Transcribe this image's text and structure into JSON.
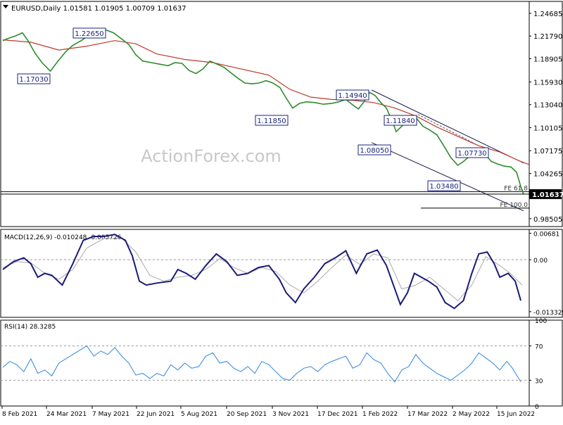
{
  "chart_data": [
    {
      "type": "candlestick",
      "panel": "price",
      "title": "EURUSD,Daily",
      "ohlc_readout": "1.01581 1.01905 1.00709 1.01637",
      "watermark": "ActionForex.com",
      "ylim": [
        0.975,
        1.262
      ],
      "y_ticks": [
        "1.24685",
        "1.21790",
        "1.18905",
        "1.15930",
        "1.13040",
        "1.10105",
        "1.07175",
        "1.04265",
        "1.01637",
        "0.98505"
      ],
      "x_ticks": [
        "8 Feb 2021",
        "24 Mar 2021",
        "7 May 2021",
        "22 Jun 2021",
        "5 Aug 2021",
        "20 Sep 2021",
        "3 Nov 2021",
        "17 Dec 2021",
        "1 Feb 2022",
        "17 Mar 2022",
        "2 May 2022",
        "15 Jun 2022"
      ],
      "current_price": "1.01637",
      "price_path": [
        [
          0,
          1.212
        ],
        [
          8,
          1.215
        ],
        [
          18,
          1.218
        ],
        [
          28,
          1.222
        ],
        [
          36,
          1.212
        ],
        [
          46,
          1.196
        ],
        [
          56,
          1.184
        ],
        [
          68,
          1.173
        ],
        [
          78,
          1.185
        ],
        [
          90,
          1.198
        ],
        [
          100,
          1.206
        ],
        [
          112,
          1.212
        ],
        [
          122,
          1.218
        ],
        [
          134,
          1.224
        ],
        [
          146,
          1.226
        ],
        [
          158,
          1.222
        ],
        [
          170,
          1.214
        ],
        [
          180,
          1.207
        ],
        [
          190,
          1.194
        ],
        [
          200,
          1.186
        ],
        [
          212,
          1.184
        ],
        [
          224,
          1.182
        ],
        [
          236,
          1.18
        ],
        [
          246,
          1.184
        ],
        [
          256,
          1.183
        ],
        [
          266,
          1.174
        ],
        [
          276,
          1.17
        ],
        [
          286,
          1.176
        ],
        [
          296,
          1.186
        ],
        [
          306,
          1.182
        ],
        [
          316,
          1.178
        ],
        [
          326,
          1.171
        ],
        [
          336,
          1.164
        ],
        [
          346,
          1.158
        ],
        [
          356,
          1.157
        ],
        [
          366,
          1.158
        ],
        [
          376,
          1.161
        ],
        [
          386,
          1.158
        ],
        [
          396,
          1.152
        ],
        [
          404,
          1.14
        ],
        [
          414,
          1.126
        ],
        [
          424,
          1.132
        ],
        [
          434,
          1.134
        ],
        [
          446,
          1.133
        ],
        [
          458,
          1.131
        ],
        [
          470,
          1.132
        ],
        [
          480,
          1.134
        ],
        [
          490,
          1.137
        ],
        [
          500,
          1.13
        ],
        [
          508,
          1.125
        ],
        [
          516,
          1.134
        ],
        [
          524,
          1.146
        ],
        [
          532,
          1.142
        ],
        [
          540,
          1.133
        ],
        [
          548,
          1.126
        ],
        [
          556,
          1.11
        ],
        [
          562,
          1.096
        ],
        [
          570,
          1.103
        ],
        [
          580,
          1.111
        ],
        [
          590,
          1.114
        ],
        [
          600,
          1.103
        ],
        [
          610,
          1.098
        ],
        [
          620,
          1.092
        ],
        [
          630,
          1.078
        ],
        [
          640,
          1.063
        ],
        [
          650,
          1.053
        ],
        [
          658,
          1.058
        ],
        [
          666,
          1.064
        ],
        [
          674,
          1.072
        ],
        [
          682,
          1.073
        ],
        [
          690,
          1.066
        ],
        [
          698,
          1.058
        ],
        [
          706,
          1.055
        ],
        [
          716,
          1.052
        ],
        [
          726,
          1.051
        ],
        [
          734,
          1.044
        ],
        [
          740,
          1.026
        ],
        [
          744,
          1.016
        ]
      ],
      "sma_path": [
        [
          0,
          1.213
        ],
        [
          40,
          1.21
        ],
        [
          80,
          1.2
        ],
        [
          120,
          1.205
        ],
        [
          160,
          1.212
        ],
        [
          190,
          1.208
        ],
        [
          220,
          1.195
        ],
        [
          260,
          1.188
        ],
        [
          300,
          1.184
        ],
        [
          340,
          1.176
        ],
        [
          380,
          1.168
        ],
        [
          410,
          1.15
        ],
        [
          440,
          1.14
        ],
        [
          470,
          1.137
        ],
        [
          500,
          1.136
        ],
        [
          530,
          1.133
        ],
        [
          560,
          1.126
        ],
        [
          590,
          1.116
        ],
        [
          620,
          1.102
        ],
        [
          650,
          1.09
        ],
        [
          680,
          1.078
        ],
        [
          710,
          1.07
        ],
        [
          740,
          1.058
        ],
        [
          752,
          1.054
        ]
      ],
      "annotations": [
        {
          "label": "1.22650",
          "value": 1.2265
        },
        {
          "label": "1.17030",
          "value": 1.1703
        },
        {
          "label": "1.14940",
          "value": 1.1494
        },
        {
          "label": "1.11850",
          "value": 1.1185
        },
        {
          "label": "1.11840",
          "value": 1.1184
        },
        {
          "label": "1.08050",
          "value": 1.0805
        },
        {
          "label": "1.07730",
          "value": 1.0773
        },
        {
          "label": "1.03480",
          "value": 1.0348
        }
      ],
      "fib_levels": [
        {
          "label": "FE 61.8",
          "value": 1.0195
        },
        {
          "label": "FE 100.0",
          "value": 0.9985
        }
      ],
      "colors": {
        "price": "#2d8c2d",
        "sma": "#c0392b",
        "trend": "#1a1a4a",
        "label_border": "#1a237e",
        "label_text": "#1a237e"
      }
    },
    {
      "type": "line",
      "panel": "macd",
      "label": "MACD(12,26,9) -0.010248 -0.005726",
      "ylim": [
        -0.0148,
        0.0078
      ],
      "y_ticks": [
        "0.00681",
        "0.00",
        "-0.013329"
      ],
      "macd_path": [
        [
          0,
          -0.0025
        ],
        [
          15,
          -0.0005
        ],
        [
          30,
          0.0005
        ],
        [
          40,
          -0.001
        ],
        [
          50,
          -0.0045
        ],
        [
          60,
          -0.0035
        ],
        [
          70,
          -0.004
        ],
        [
          85,
          -0.0065
        ],
        [
          100,
          -0.001
        ],
        [
          115,
          0.005
        ],
        [
          130,
          0.006
        ],
        [
          145,
          0.006
        ],
        [
          160,
          0.0065
        ],
        [
          175,
          0.005
        ],
        [
          185,
          0.001
        ],
        [
          195,
          -0.0055
        ],
        [
          205,
          -0.0065
        ],
        [
          220,
          -0.006
        ],
        [
          240,
          -0.0055
        ],
        [
          250,
          -0.0025
        ],
        [
          262,
          -0.0035
        ],
        [
          275,
          -0.005
        ],
        [
          290,
          -0.0015
        ],
        [
          305,
          0.0015
        ],
        [
          320,
          -0.0005
        ],
        [
          335,
          -0.004
        ],
        [
          350,
          -0.0035
        ],
        [
          365,
          -0.002
        ],
        [
          380,
          -0.0015
        ],
        [
          395,
          -0.005
        ],
        [
          405,
          -0.0085
        ],
        [
          418,
          -0.011
        ],
        [
          430,
          -0.0075
        ],
        [
          445,
          -0.0045
        ],
        [
          460,
          -0.001
        ],
        [
          475,
          0.0005
        ],
        [
          490,
          0.0023
        ],
        [
          505,
          -0.0035
        ],
        [
          520,
          0.0015
        ],
        [
          535,
          0.0025
        ],
        [
          548,
          -0.0015
        ],
        [
          558,
          -0.0065
        ],
        [
          568,
          -0.0115
        ],
        [
          578,
          -0.0085
        ],
        [
          588,
          -0.0035
        ],
        [
          598,
          -0.0045
        ],
        [
          608,
          -0.0055
        ],
        [
          620,
          -0.007
        ],
        [
          632,
          -0.011
        ],
        [
          645,
          -0.0125
        ],
        [
          658,
          -0.0105
        ],
        [
          670,
          -0.0035
        ],
        [
          680,
          0.0015
        ],
        [
          692,
          0.002
        ],
        [
          702,
          -0.001
        ],
        [
          710,
          -0.0045
        ],
        [
          722,
          -0.0035
        ],
        [
          732,
          -0.0055
        ],
        [
          740,
          -0.0105
        ]
      ],
      "signal_path": [
        [
          0,
          -0.002
        ],
        [
          20,
          -0.0005
        ],
        [
          40,
          -0.0008
        ],
        [
          60,
          -0.0035
        ],
        [
          80,
          -0.005
        ],
        [
          100,
          -0.0025
        ],
        [
          120,
          0.003
        ],
        [
          145,
          0.0055
        ],
        [
          170,
          0.0055
        ],
        [
          190,
          0.002
        ],
        [
          210,
          -0.004
        ],
        [
          230,
          -0.0055
        ],
        [
          250,
          -0.0045
        ],
        [
          270,
          -0.004
        ],
        [
          290,
          -0.0025
        ],
        [
          310,
          0.0003
        ],
        [
          330,
          -0.002
        ],
        [
          350,
          -0.0035
        ],
        [
          370,
          -0.002
        ],
        [
          390,
          -0.003
        ],
        [
          410,
          -0.0065
        ],
        [
          430,
          -0.0085
        ],
        [
          450,
          -0.0055
        ],
        [
          470,
          -0.002
        ],
        [
          490,
          0.0012
        ],
        [
          510,
          -0.0012
        ],
        [
          530,
          0.0015
        ],
        [
          550,
          0.0005
        ],
        [
          570,
          -0.0075
        ],
        [
          590,
          -0.0065
        ],
        [
          610,
          -0.0045
        ],
        [
          630,
          -0.0075
        ],
        [
          650,
          -0.0105
        ],
        [
          670,
          -0.0065
        ],
        [
          690,
          0.0008
        ],
        [
          710,
          -0.0015
        ],
        [
          725,
          -0.0035
        ],
        [
          742,
          -0.0065
        ]
      ],
      "colors": {
        "macd": "#1a1a7a",
        "signal": "#aaaaaa",
        "zero_line": "#999999"
      }
    },
    {
      "type": "line",
      "panel": "rsi",
      "label": "RSI(14) 28.3285",
      "ylim": [
        0,
        100
      ],
      "y_ticks": [
        "100",
        "70",
        "30",
        "0"
      ],
      "rsi_path": [
        [
          0,
          45
        ],
        [
          10,
          52
        ],
        [
          20,
          48
        ],
        [
          30,
          40
        ],
        [
          40,
          55
        ],
        [
          50,
          38
        ],
        [
          60,
          42
        ],
        [
          70,
          35
        ],
        [
          80,
          50
        ],
        [
          90,
          55
        ],
        [
          100,
          60
        ],
        [
          110,
          65
        ],
        [
          120,
          70
        ],
        [
          130,
          58
        ],
        [
          140,
          64
        ],
        [
          150,
          60
        ],
        [
          160,
          68
        ],
        [
          170,
          58
        ],
        [
          180,
          50
        ],
        [
          190,
          36
        ],
        [
          200,
          38
        ],
        [
          210,
          32
        ],
        [
          220,
          38
        ],
        [
          230,
          35
        ],
        [
          240,
          48
        ],
        [
          250,
          42
        ],
        [
          260,
          50
        ],
        [
          270,
          44
        ],
        [
          280,
          46
        ],
        [
          290,
          58
        ],
        [
          300,
          62
        ],
        [
          310,
          50
        ],
        [
          320,
          52
        ],
        [
          330,
          44
        ],
        [
          340,
          40
        ],
        [
          350,
          46
        ],
        [
          360,
          38
        ],
        [
          370,
          52
        ],
        [
          380,
          48
        ],
        [
          390,
          40
        ],
        [
          400,
          32
        ],
        [
          410,
          30
        ],
        [
          420,
          38
        ],
        [
          430,
          44
        ],
        [
          440,
          46
        ],
        [
          450,
          40
        ],
        [
          460,
          48
        ],
        [
          470,
          52
        ],
        [
          480,
          55
        ],
        [
          490,
          58
        ],
        [
          500,
          44
        ],
        [
          510,
          48
        ],
        [
          520,
          62
        ],
        [
          530,
          54
        ],
        [
          540,
          50
        ],
        [
          550,
          38
        ],
        [
          560,
          28
        ],
        [
          570,
          42
        ],
        [
          580,
          46
        ],
        [
          590,
          60
        ],
        [
          600,
          50
        ],
        [
          610,
          44
        ],
        [
          620,
          38
        ],
        [
          630,
          34
        ],
        [
          640,
          30
        ],
        [
          650,
          36
        ],
        [
          660,
          42
        ],
        [
          670,
          50
        ],
        [
          680,
          62
        ],
        [
          690,
          56
        ],
        [
          700,
          50
        ],
        [
          710,
          42
        ],
        [
          720,
          52
        ],
        [
          728,
          44
        ],
        [
          734,
          36
        ],
        [
          740,
          28
        ]
      ],
      "colors": {
        "rsi": "#2e86de",
        "level_line": "#999999"
      }
    }
  ]
}
